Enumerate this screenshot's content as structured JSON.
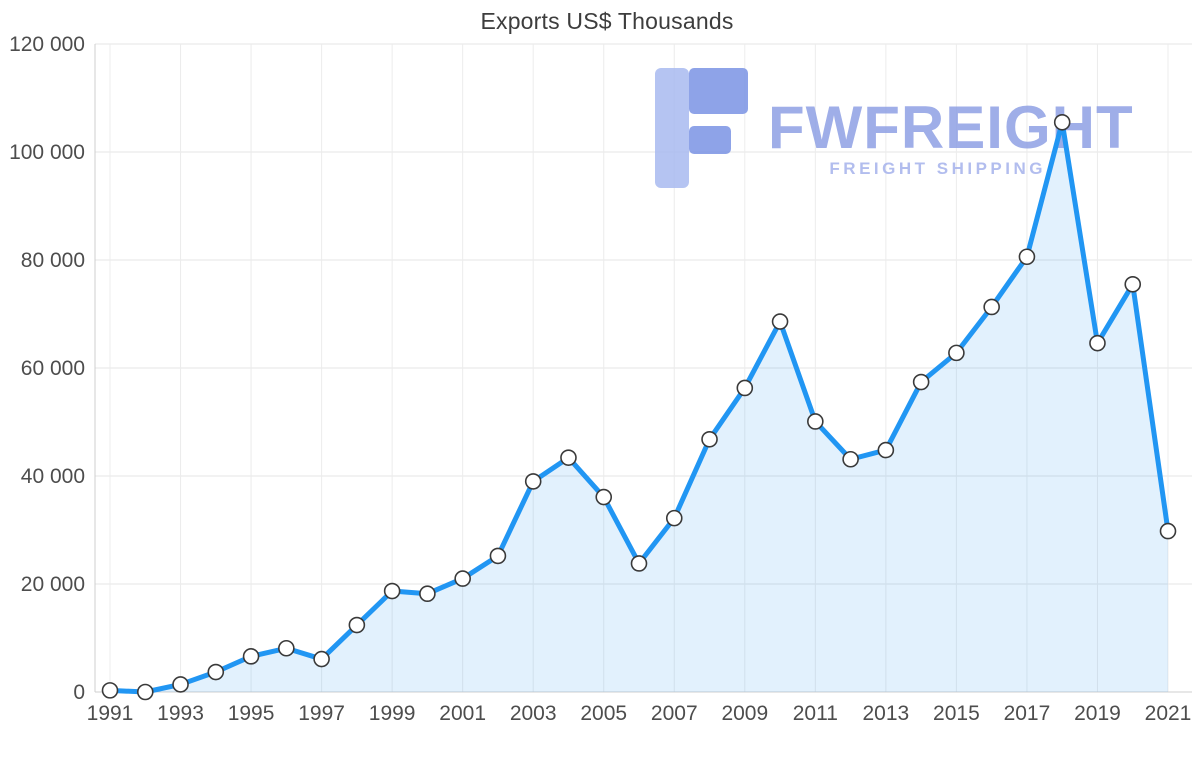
{
  "chart_data": {
    "type": "area",
    "title": "Exports US$ Thousands",
    "x": [
      1991,
      1992,
      1993,
      1994,
      1995,
      1996,
      1997,
      1998,
      1999,
      2000,
      2001,
      2002,
      2003,
      2004,
      2005,
      2006,
      2007,
      2008,
      2009,
      2010,
      2011,
      2012,
      2013,
      2014,
      2015,
      2016,
      2017,
      2018,
      2019,
      2020,
      2021
    ],
    "values": [
      300,
      0,
      1400,
      3700,
      6600,
      8100,
      6100,
      12400,
      18700,
      18200,
      21000,
      25200,
      39000,
      43400,
      36100,
      23800,
      32200,
      46800,
      56300,
      68600,
      50100,
      43100,
      44800,
      57400,
      62800,
      71300,
      80600,
      105500,
      64600,
      75500,
      29800
    ],
    "ylim": [
      0,
      120000
    ],
    "yticks": [
      0,
      20000,
      40000,
      60000,
      80000,
      100000,
      120000
    ],
    "ytick_labels": [
      "0",
      "20 000",
      "40 000",
      "60 000",
      "80 000",
      "100 000",
      "120 000"
    ],
    "xtick_labels": [
      "1991",
      "1993",
      "1995",
      "1997",
      "1999",
      "2001",
      "2003",
      "2005",
      "2007",
      "2009",
      "2011",
      "2013",
      "2015",
      "2017",
      "2019",
      "2021"
    ],
    "grid": true,
    "legend": "none",
    "line_color": "#2196f3",
    "fill_color": "rgba(33,150,243,0.13)",
    "marker_fill": "#ffffff",
    "marker_stroke": "#3a3a3a",
    "gridline_color": "#e4e4e4",
    "axis_color": "#cfcfcf"
  },
  "watermark": {
    "brand": "FWFREIGHT",
    "tagline": "FREIGHT SHIPPING",
    "brand_color": "#8fa0e4",
    "tagline_color": "#a5b2ec",
    "logo_light": "#a9baf0",
    "logo_dark": "#7b94e4"
  }
}
